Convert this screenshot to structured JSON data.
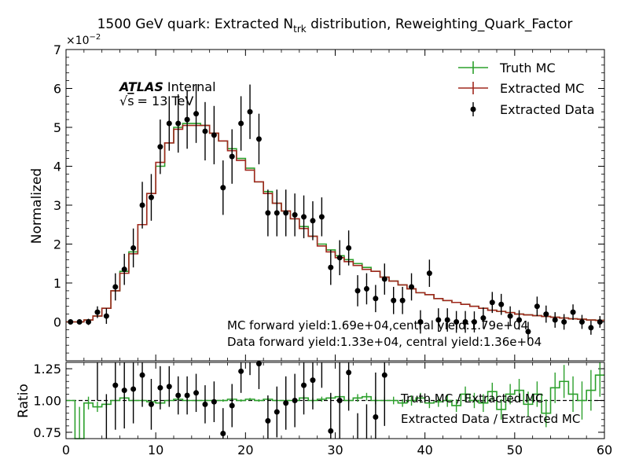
{
  "chart_data": {
    "type": "line",
    "title_main": "1500 GeV quark: Extracted N",
    "title_sub": "trk",
    "title_rest": " distribution, Reweighting_Quark_Factor",
    "ylabel_top": "Normalized",
    "ylabel_bottom": "Ratio",
    "y_scale_label": "×10",
    "y_scale_exp": "−2",
    "atlas_label": "ATLAS",
    "atlas_status": "Internal",
    "energy_sqrt": "√",
    "energy_s": "s",
    "energy_value": "= 13 TeV",
    "xlim": [
      0,
      60
    ],
    "ylim_top": [
      -1,
      7
    ],
    "ylim_bottom": [
      0.7,
      1.3
    ],
    "x_ticks": [
      "0",
      "10",
      "20",
      "30",
      "40",
      "50",
      "60"
    ],
    "y_ticks_top": [
      "0",
      "1",
      "2",
      "3",
      "4",
      "5",
      "6",
      "7"
    ],
    "y_ticks_bottom": [
      "0.75",
      "1.00",
      "1.25"
    ],
    "annotation_mc": "MC forward yield:1.69e+04,central yield:1.79e+04",
    "annotation_data": "Data forward yield:1.33e+04, central yield:1.36e+04",
    "colors": {
      "truth_mc": "#2ca02c",
      "extracted_mc": "#a0281e",
      "data": "#000000"
    },
    "legend_top": [
      "Truth MC",
      "Extracted MC",
      "Extracted Data"
    ],
    "legend_bottom": [
      "Truth MC / Extracted MC",
      "Extracted Data / Extracted MC"
    ],
    "bin_edges": [
      0,
      1,
      2,
      3,
      4,
      5,
      6,
      7,
      8,
      9,
      10,
      11,
      12,
      13,
      14,
      15,
      16,
      17,
      18,
      19,
      20,
      21,
      22,
      23,
      24,
      25,
      26,
      27,
      28,
      29,
      30,
      31,
      32,
      33,
      34,
      35,
      36,
      37,
      38,
      39,
      40,
      41,
      42,
      43,
      44,
      45,
      46,
      47,
      48,
      49,
      50,
      51,
      52,
      53,
      54,
      55,
      56,
      57,
      58,
      59,
      60
    ],
    "series": [
      {
        "name": "Truth MC",
        "values": [
          0,
          0,
          0.05,
          0.15,
          0.35,
          0.8,
          1.3,
          1.8,
          2.5,
          3.3,
          4.0,
          4.6,
          5.0,
          5.1,
          5.1,
          5.05,
          4.85,
          4.65,
          4.45,
          4.2,
          3.95,
          3.6,
          3.35,
          3.05,
          2.85,
          2.65,
          2.45,
          2.2,
          2.0,
          1.85,
          1.7,
          1.6,
          1.5,
          1.4,
          1.3,
          1.15,
          1.05,
          0.95,
          0.85,
          0.75,
          0.7,
          0.6,
          0.55,
          0.5,
          0.45,
          0.4,
          0.35,
          0.3,
          0.27,
          0.24,
          0.2,
          0.18,
          0.16,
          0.14,
          0.12,
          0.1,
          0.08,
          0.07,
          0.05,
          0.04
        ]
      },
      {
        "name": "Extracted MC",
        "values": [
          0,
          0,
          0.05,
          0.15,
          0.35,
          0.8,
          1.25,
          1.75,
          2.5,
          3.3,
          4.1,
          4.6,
          4.95,
          5.05,
          5.05,
          5.05,
          4.85,
          4.65,
          4.4,
          4.15,
          3.9,
          3.6,
          3.3,
          3.05,
          2.85,
          2.65,
          2.4,
          2.2,
          1.95,
          1.8,
          1.65,
          1.55,
          1.45,
          1.35,
          1.3,
          1.15,
          1.05,
          0.95,
          0.85,
          0.75,
          0.7,
          0.6,
          0.55,
          0.5,
          0.45,
          0.4,
          0.35,
          0.3,
          0.27,
          0.24,
          0.2,
          0.18,
          0.16,
          0.14,
          0.12,
          0.1,
          0.08,
          0.07,
          0.05,
          0.04
        ]
      },
      {
        "name": "Extracted Data",
        "values": [
          0,
          0,
          0,
          0.25,
          0.15,
          0.9,
          1.35,
          1.9,
          3.0,
          3.2,
          4.5,
          5.1,
          5.1,
          5.2,
          5.35,
          4.9,
          4.8,
          3.45,
          4.25,
          5.1,
          5.4,
          4.7,
          2.8,
          2.8,
          2.8,
          2.75,
          2.7,
          2.6,
          2.7,
          1.4,
          1.65,
          1.9,
          0.8,
          0.85,
          0.6,
          1.1,
          0.55,
          0.55,
          0.9,
          0,
          1.25,
          0.05,
          0.05,
          0,
          0,
          0,
          0.1,
          0.5,
          0.45,
          0.15,
          0.05,
          -0.25,
          0.4,
          0.2,
          0.05,
          0,
          0.25,
          0,
          -0.15,
          0
        ],
        "errors": [
          0.05,
          0.05,
          0.08,
          0.15,
          0.2,
          0.35,
          0.4,
          0.5,
          0.6,
          0.6,
          0.7,
          0.7,
          0.75,
          0.75,
          0.75,
          0.75,
          0.75,
          0.7,
          0.7,
          0.7,
          0.7,
          0.65,
          0.6,
          0.6,
          0.6,
          0.55,
          0.55,
          0.5,
          0.5,
          0.45,
          0.45,
          0.45,
          0.4,
          0.4,
          0.35,
          0.4,
          0.35,
          0.35,
          0.35,
          0.3,
          0.35,
          0.3,
          0.3,
          0.28,
          0.28,
          0.27,
          0.27,
          0.27,
          0.27,
          0.25,
          0.25,
          0.25,
          0.25,
          0.22,
          0.2,
          0.2,
          0.2,
          0.18,
          0.18,
          0.15
        ]
      }
    ],
    "ratio_series": [
      {
        "name": "Truth MC / Extracted MC",
        "values": [
          1,
          0.7,
          0.98,
          0.95,
          0.97,
          1.0,
          1.02,
          1.0,
          1.0,
          0.99,
          0.98,
          1.0,
          1.01,
          1.0,
          1.0,
          1.0,
          1.0,
          1.0,
          1.01,
          1.0,
          1.01,
          1.0,
          1.01,
          1.0,
          1.0,
          1.0,
          1.02,
          1.0,
          1.01,
          1.02,
          1.03,
          1.0,
          1.02,
          1.03,
          1.0,
          1.0,
          1.0,
          0.98,
          1.0,
          1.02,
          0.98,
          0.99,
          1.0,
          0.96,
          1.05,
          1.0,
          0.98,
          1.07,
          0.93,
          1.05,
          1.08,
          0.97,
          1.05,
          0.9,
          1.1,
          1.15,
          1.05,
          1.0,
          1.08,
          1.2
        ],
        "errors": [
          0,
          0.25,
          0.05,
          0.04,
          0.03,
          0.02,
          0.02,
          0.02,
          0.01,
          0.01,
          0.01,
          0.01,
          0.01,
          0.01,
          0.01,
          0.01,
          0.01,
          0.01,
          0.01,
          0.01,
          0.01,
          0.01,
          0.01,
          0.01,
          0.02,
          0.02,
          0.02,
          0.02,
          0.02,
          0.02,
          0.02,
          0.02,
          0.03,
          0.03,
          0.03,
          0.03,
          0.03,
          0.03,
          0.04,
          0.04,
          0.04,
          0.04,
          0.05,
          0.05,
          0.06,
          0.06,
          0.07,
          0.07,
          0.08,
          0.08,
          0.09,
          0.1,
          0.1,
          0.11,
          0.12,
          0.13,
          0.14,
          0.15,
          0.16,
          0.17
        ]
      },
      {
        "name": "Extracted Data / Extracted MC",
        "values": [
          null,
          null,
          null,
          1.6,
          0.45,
          1.12,
          1.08,
          1.09,
          1.2,
          0.97,
          1.1,
          1.11,
          1.04,
          1.04,
          1.06,
          0.97,
          0.99,
          0.74,
          0.96,
          1.23,
          1.38,
          1.29,
          0.84,
          0.91,
          0.98,
          1.0,
          1.12,
          1.16,
          1.35,
          0.76,
          1.0,
          1.22,
          0.55,
          0.62,
          0.87,
          1.2,
          null,
          null,
          null,
          null,
          null,
          null,
          null,
          null,
          null,
          null,
          null,
          null,
          null,
          null,
          null,
          null,
          null,
          null,
          null,
          null,
          null,
          null,
          null,
          null
        ],
        "errors": [
          0,
          0,
          0,
          0.6,
          0.6,
          0.35,
          0.3,
          0.27,
          0.25,
          0.2,
          0.17,
          0.16,
          0.15,
          0.15,
          0.15,
          0.15,
          0.16,
          0.2,
          0.17,
          0.17,
          0.18,
          0.2,
          0.2,
          0.2,
          0.21,
          0.21,
          0.23,
          0.23,
          0.25,
          0.3,
          0.3,
          0.3,
          0.35,
          0.35,
          0.35,
          0.4,
          0,
          0,
          0,
          0,
          0,
          0,
          0,
          0,
          0,
          0,
          0,
          0,
          0,
          0,
          0,
          0,
          0,
          0,
          0,
          0,
          0,
          0,
          0,
          0
        ]
      }
    ]
  }
}
